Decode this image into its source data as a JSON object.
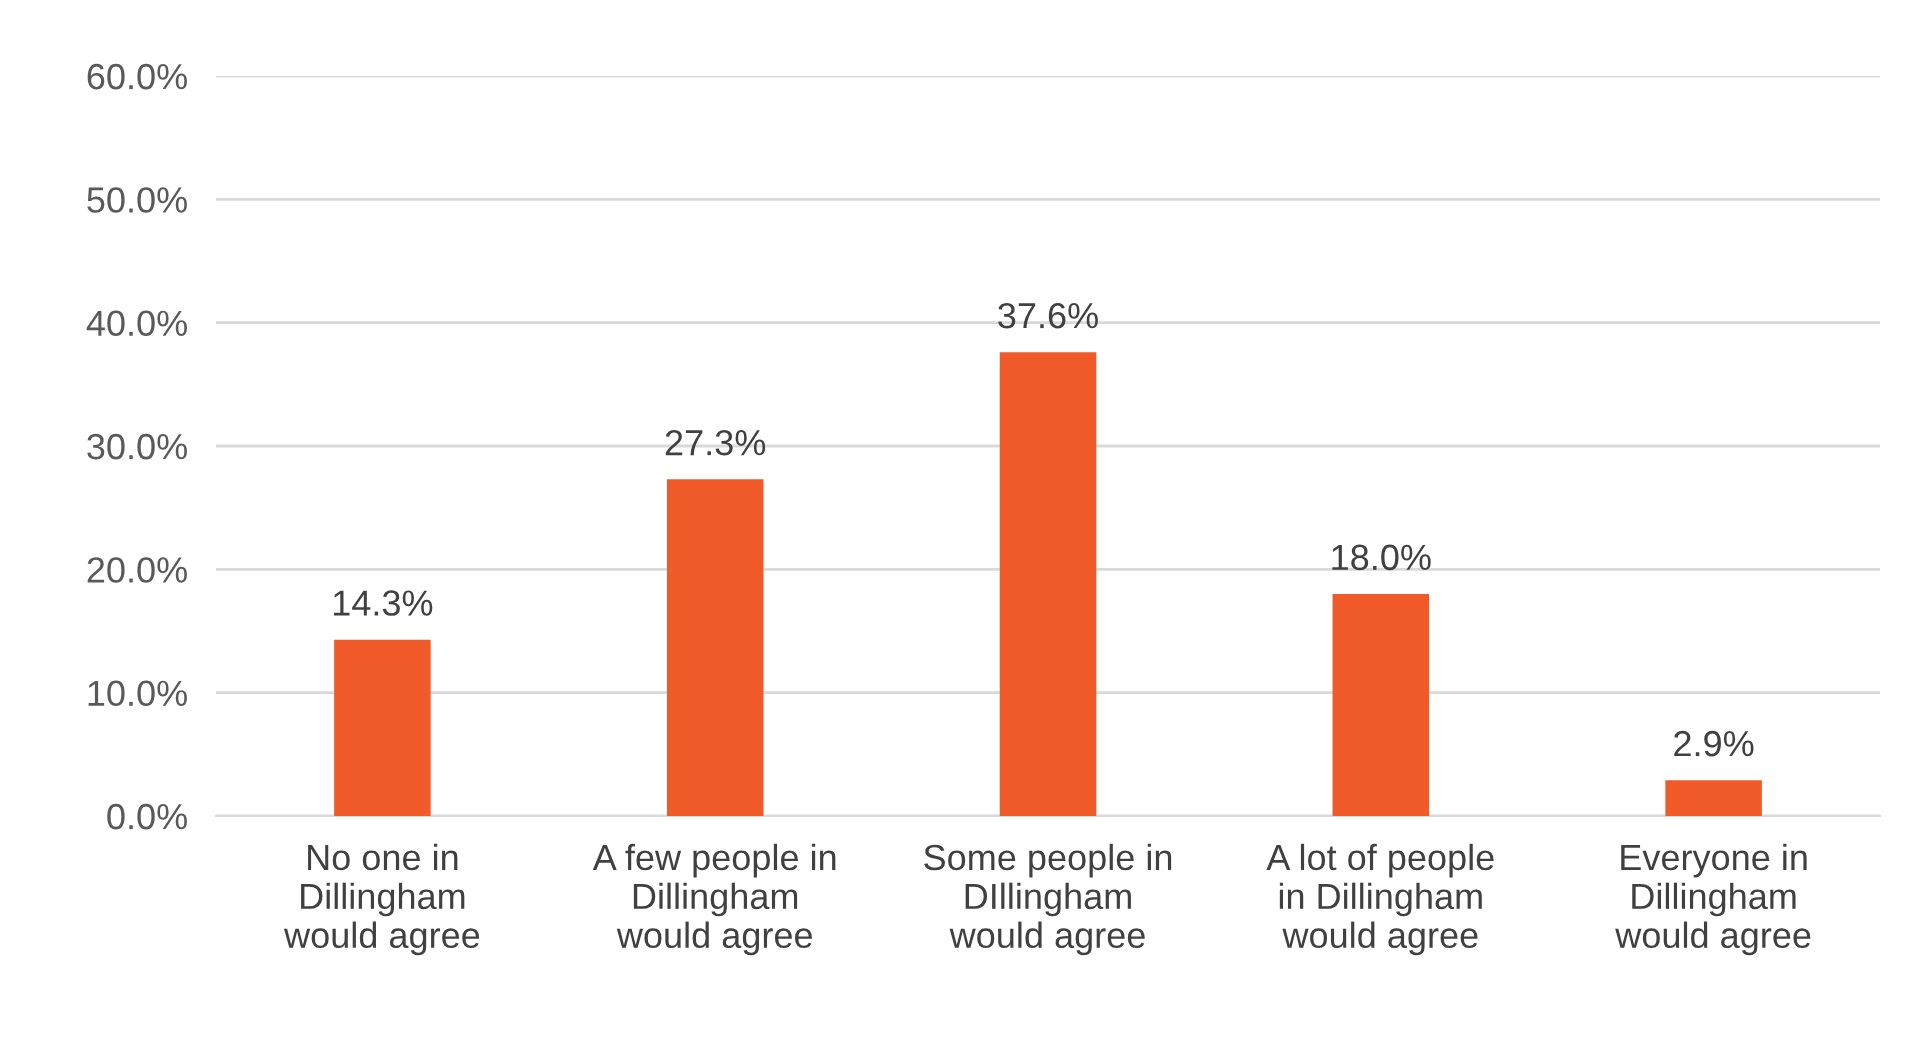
{
  "chart_data": {
    "type": "bar",
    "categories": [
      "No one in\nDillingham\nwould agree",
      "A few people in\nDillingham\nwould agree",
      "Some people in\nDIllingham\nwould agree",
      "A lot of people\nin Dillingham\nwould agree",
      "Everyone in\nDillingham\nwould agree"
    ],
    "values": [
      14.3,
      27.3,
      37.6,
      18.0,
      2.9
    ],
    "value_labels": [
      "14.3%",
      "27.3%",
      "37.6%",
      "18.0%",
      "2.9%"
    ],
    "color": "#f15a29",
    "ylim": [
      0,
      60
    ],
    "yticks": [
      {
        "value": 0,
        "label": "0.0%"
      },
      {
        "value": 10,
        "label": "10.0%"
      },
      {
        "value": 20,
        "label": "20.0%"
      },
      {
        "value": 30,
        "label": "30.0%"
      },
      {
        "value": 40,
        "label": "40.0%"
      },
      {
        "value": 50,
        "label": "50.0%"
      },
      {
        "value": 60,
        "label": "60.0%"
      }
    ],
    "grid": "y",
    "legend": false
  }
}
